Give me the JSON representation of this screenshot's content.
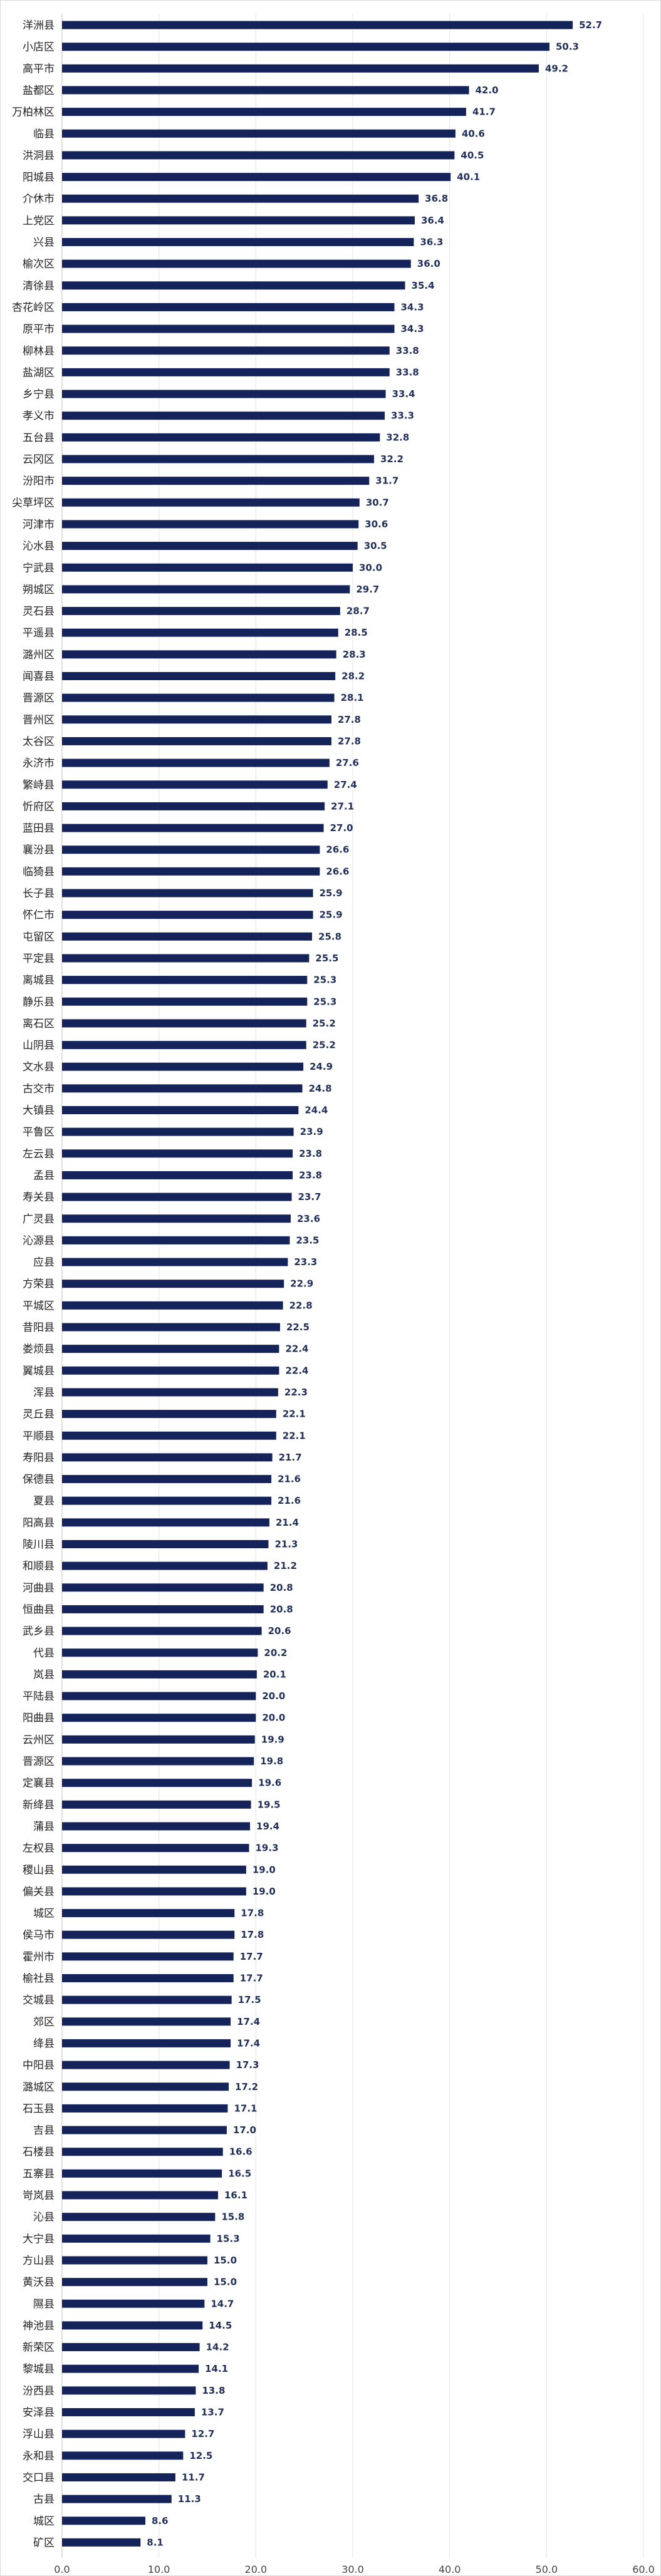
{
  "chart_data": {
    "type": "bar",
    "orientation": "horizontal",
    "title": "",
    "xlabel": "",
    "ylabel": "",
    "xlim": [
      0,
      60
    ],
    "xticks": [
      0,
      10,
      20,
      30,
      40,
      50,
      60
    ],
    "xtick_labels": [
      "0.0",
      "10.0",
      "20.0",
      "30.0",
      "40.0",
      "50.0",
      "60.0"
    ],
    "grid": true,
    "legend": "none",
    "bar_color": "#14245a",
    "categories": [
      "洋洲县",
      "小店区",
      "高平市",
      "盐都区",
      "万柏林区",
      "临县",
      "洪洞县",
      "阳城县",
      "介休市",
      "上党区",
      "兴县",
      "榆次区",
      "清徐县",
      "杏花岭区",
      "原平市",
      "柳林县",
      "盐湖区",
      "乡宁县",
      "孝义市",
      "五台县",
      "云冈区",
      "汾阳市",
      "尖草坪区",
      "河津市",
      "沁水县",
      "宁武县",
      "朔城区",
      "灵石县",
      "平遥县",
      "潞州区",
      "闻喜县",
      "晋源区",
      "晋州区",
      "太谷区",
      "永济市",
      "繁峙县",
      "忻府区",
      "蓝田县",
      "襄汾县",
      "临猗县",
      "长子县",
      "怀仁市",
      "屯留区",
      "平定县",
      "离城县",
      "静乐县",
      "离石区",
      "山阴县",
      "文水县",
      "古交市",
      "大镇县",
      "平鲁区",
      "左云县",
      "孟县",
      "寿关县",
      "广灵县",
      "沁源县",
      "应县",
      "方荣县",
      "平城区",
      "昔阳县",
      "娄烦县",
      "翼城县",
      "浑县",
      "灵丘县",
      "平顺县",
      "寿阳县",
      "保德县",
      "夏县",
      "阳高县",
      "陵川县",
      "和顺县",
      "河曲县",
      "恒曲县",
      "武乡县",
      "代县",
      "岚县",
      "平陆县",
      "阳曲县",
      "云州区",
      "晋源区",
      "定襄县",
      "新绛县",
      "蒲县",
      "左权县",
      "稷山县",
      "偏关县",
      "城区",
      "侯马市",
      "霍州市",
      "榆社县",
      "交城县",
      "郊区",
      "绛县",
      "中阳县",
      "潞城区",
      "石玉县",
      "吉县",
      "石楼县",
      "五寨县",
      "岢岚县",
      "沁县",
      "大宁县",
      "方山县",
      "黄沃县",
      "隰县",
      "神池县",
      "新荣区",
      "黎城县",
      "汾西县",
      "安泽县",
      "浮山县",
      "永和县",
      "交口县",
      "古县",
      "城区",
      "矿区"
    ],
    "values": [
      52.7,
      50.3,
      49.2,
      42.0,
      41.7,
      40.6,
      40.5,
      40.1,
      36.8,
      36.4,
      36.3,
      36.0,
      35.4,
      34.3,
      34.3,
      33.8,
      33.8,
      33.4,
      33.3,
      32.8,
      32.2,
      31.7,
      30.7,
      30.6,
      30.5,
      30.0,
      29.7,
      28.7,
      28.5,
      28.3,
      28.2,
      28.1,
      27.8,
      27.8,
      27.6,
      27.4,
      27.1,
      27.0,
      26.6,
      26.6,
      25.9,
      25.9,
      25.8,
      25.5,
      25.3,
      25.3,
      25.2,
      25.2,
      24.9,
      24.8,
      24.4,
      23.9,
      23.8,
      23.8,
      23.7,
      23.6,
      23.5,
      23.3,
      22.9,
      22.8,
      22.5,
      22.4,
      22.4,
      22.3,
      22.1,
      22.1,
      21.7,
      21.6,
      21.6,
      21.4,
      21.3,
      21.2,
      20.8,
      20.8,
      20.6,
      20.2,
      20.1,
      20.0,
      20.0,
      19.9,
      19.8,
      19.6,
      19.5,
      19.4,
      19.3,
      19.0,
      19.0,
      17.8,
      17.8,
      17.7,
      17.7,
      17.5,
      17.4,
      17.4,
      17.3,
      17.2,
      17.1,
      17.0,
      16.6,
      16.5,
      16.1,
      15.8,
      15.3,
      15.0,
      15.0,
      14.7,
      14.5,
      14.2,
      14.1,
      13.8,
      13.7,
      12.7,
      12.5,
      11.7,
      11.3,
      8.6,
      8.1
    ]
  }
}
